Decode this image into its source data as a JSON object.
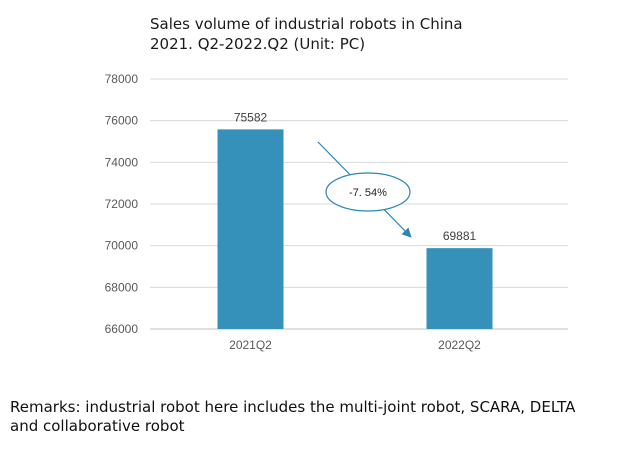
{
  "chart_data": {
    "type": "bar",
    "title_line1": "Sales volume of industrial robots in China",
    "title_line2": "2021. Q2-2022.Q2 (Unit: PC)",
    "categories": [
      "2021Q2",
      "2022Q2"
    ],
    "values": [
      75582,
      69881
    ],
    "data_labels": [
      "75582",
      "69881"
    ],
    "ylim": [
      66000,
      78000
    ],
    "yticks": [
      "66000",
      "68000",
      "70000",
      "72000",
      "74000",
      "76000",
      "78000"
    ],
    "grid": true,
    "bar_color": "#3591ba",
    "annotation": {
      "text": "-7. 54%",
      "arrow_color": "#2b86b3",
      "ellipse_color": "#2b86b3"
    }
  },
  "remarks": {
    "line1": "Remarks: industrial robot here includes the multi-joint robot, SCARA, DELTA",
    "line2": "and collaborative robot"
  }
}
